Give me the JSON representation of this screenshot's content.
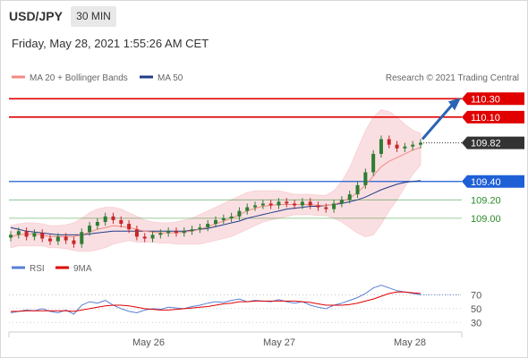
{
  "header": {
    "symbol": "USD/JPY",
    "timeframe": "30 MIN",
    "datetime": "Friday, May 28, 2021 1:55:26 AM CET"
  },
  "legend": {
    "ma20_label": "MA 20 + Bollinger Bands",
    "ma50_label": "MA 50",
    "credit": "Research © 2021 Trading Central",
    "rsi_label": "RSI",
    "rsi_ma_label": "9MA"
  },
  "colors": {
    "ma20": "#f28b82",
    "ma50": "#1f3c88",
    "resistance": "#e00000",
    "support_blue": "#1f5fd6",
    "support_green": "#2a8a2a",
    "current": "#333333",
    "candle_up": "#2e7d32",
    "candle_down": "#c62828",
    "bollinger": "#fadadd",
    "rsi": "#5b7fd6",
    "rsi_ma": "#e00000",
    "arrow": "#2b63b5"
  },
  "chart_data": [
    {
      "type": "line",
      "title": "",
      "x_labels": [
        "May 26",
        "May 27",
        "May 28"
      ],
      "current_price": "109.82",
      "levels": [
        {
          "value": 110.3,
          "label": "110.30",
          "kind": "resistance"
        },
        {
          "value": 110.1,
          "label": "110.10",
          "kind": "resistance"
        },
        {
          "value": 109.4,
          "label": "109.40",
          "kind": "support_blue"
        },
        {
          "value": 109.2,
          "label": "109.20",
          "kind": "support_green"
        },
        {
          "value": 109.0,
          "label": "109.00",
          "kind": "support_green"
        }
      ],
      "close_series": [
        108.82,
        108.86,
        108.8,
        108.84,
        108.78,
        108.75,
        108.8,
        108.76,
        108.72,
        108.85,
        108.92,
        108.96,
        109.02,
        108.98,
        108.94,
        108.88,
        108.8,
        108.78,
        108.82,
        108.84,
        108.86,
        108.84,
        108.86,
        108.88,
        108.9,
        108.94,
        108.98,
        109.0,
        109.02,
        109.08,
        109.12,
        109.14,
        109.16,
        109.14,
        109.18,
        109.16,
        109.14,
        109.18,
        109.14,
        109.12,
        109.1,
        109.16,
        109.2,
        109.26,
        109.36,
        109.5,
        109.7,
        109.86,
        109.8,
        109.76,
        109.78,
        109.8,
        109.82
      ],
      "ma20_series": [
        108.8,
        108.82,
        108.83,
        108.83,
        108.82,
        108.8,
        108.8,
        108.8,
        108.8,
        108.82,
        108.85,
        108.88,
        108.9,
        108.92,
        108.91,
        108.9,
        108.88,
        108.86,
        108.85,
        108.84,
        108.84,
        108.84,
        108.85,
        108.86,
        108.88,
        108.91,
        108.94,
        108.97,
        109.0,
        109.04,
        109.08,
        109.11,
        109.13,
        109.14,
        109.15,
        109.15,
        109.15,
        109.15,
        109.15,
        109.14,
        109.14,
        109.15,
        109.18,
        109.22,
        109.28,
        109.36,
        109.46,
        109.56,
        109.62,
        109.66,
        109.7,
        109.74,
        109.77
      ],
      "ma50_series": [
        108.9,
        108.88,
        108.86,
        108.85,
        108.84,
        108.83,
        108.82,
        108.82,
        108.82,
        108.82,
        108.83,
        108.84,
        108.85,
        108.86,
        108.86,
        108.86,
        108.86,
        108.86,
        108.86,
        108.86,
        108.86,
        108.86,
        108.86,
        108.87,
        108.88,
        108.89,
        108.91,
        108.93,
        108.95,
        108.97,
        109.0,
        109.02,
        109.04,
        109.06,
        109.08,
        109.1,
        109.11,
        109.12,
        109.13,
        109.13,
        109.14,
        109.15,
        109.16,
        109.18,
        109.2,
        109.23,
        109.27,
        109.31,
        109.34,
        109.37,
        109.39,
        109.4,
        109.41
      ],
      "bb_upper": [
        108.92,
        108.94,
        108.95,
        108.95,
        108.94,
        108.92,
        108.92,
        108.93,
        108.95,
        109.0,
        109.06,
        109.1,
        109.12,
        109.12,
        109.1,
        109.06,
        109.02,
        108.98,
        108.96,
        108.95,
        108.95,
        108.96,
        108.98,
        109.0,
        109.04,
        109.08,
        109.12,
        109.16,
        109.2,
        109.24,
        109.28,
        109.3,
        109.3,
        109.3,
        109.3,
        109.28,
        109.26,
        109.26,
        109.26,
        109.25,
        109.25,
        109.3,
        109.4,
        109.55,
        109.75,
        109.95,
        110.1,
        110.18,
        110.16,
        110.1,
        110.02,
        109.96,
        109.92
      ],
      "bb_lower": [
        108.68,
        108.7,
        108.7,
        108.7,
        108.7,
        108.68,
        108.68,
        108.67,
        108.65,
        108.64,
        108.64,
        108.66,
        108.68,
        108.72,
        108.74,
        108.76,
        108.74,
        108.74,
        108.74,
        108.73,
        108.73,
        108.72,
        108.72,
        108.72,
        108.72,
        108.74,
        108.76,
        108.78,
        108.8,
        108.84,
        108.88,
        108.92,
        108.96,
        108.98,
        109.0,
        109.02,
        109.04,
        109.04,
        109.04,
        109.03,
        109.03,
        109.0,
        108.96,
        108.9,
        108.84,
        108.8,
        108.82,
        108.94,
        109.08,
        109.2,
        109.34,
        109.48,
        109.58
      ],
      "y_min": 108.6,
      "y_max": 110.4
    },
    {
      "type": "line",
      "title": "",
      "y_ticks": [
        "70",
        "50",
        "30"
      ],
      "y_tick_values": [
        70,
        50,
        30
      ],
      "rsi_series": [
        44,
        46,
        48,
        47,
        50,
        46,
        44,
        48,
        42,
        55,
        60,
        58,
        62,
        55,
        50,
        46,
        44,
        48,
        50,
        49,
        52,
        51,
        50,
        53,
        55,
        58,
        60,
        59,
        62,
        64,
        60,
        62,
        61,
        60,
        63,
        60,
        58,
        60,
        55,
        52,
        50,
        55,
        58,
        62,
        66,
        72,
        80,
        84,
        80,
        76,
        74,
        72,
        70
      ],
      "rsi_ma_series": [
        46,
        46,
        47,
        47,
        47,
        47,
        47,
        47,
        46,
        48,
        50,
        52,
        54,
        55,
        55,
        54,
        52,
        50,
        49,
        48,
        48,
        49,
        50,
        51,
        52,
        53,
        55,
        57,
        58,
        60,
        60,
        61,
        61,
        61,
        61,
        61,
        61,
        60,
        59,
        57,
        55,
        55,
        55,
        56,
        58,
        61,
        64,
        68,
        72,
        74,
        74,
        73,
        72
      ],
      "y_min": 20,
      "y_max": 90
    }
  ]
}
